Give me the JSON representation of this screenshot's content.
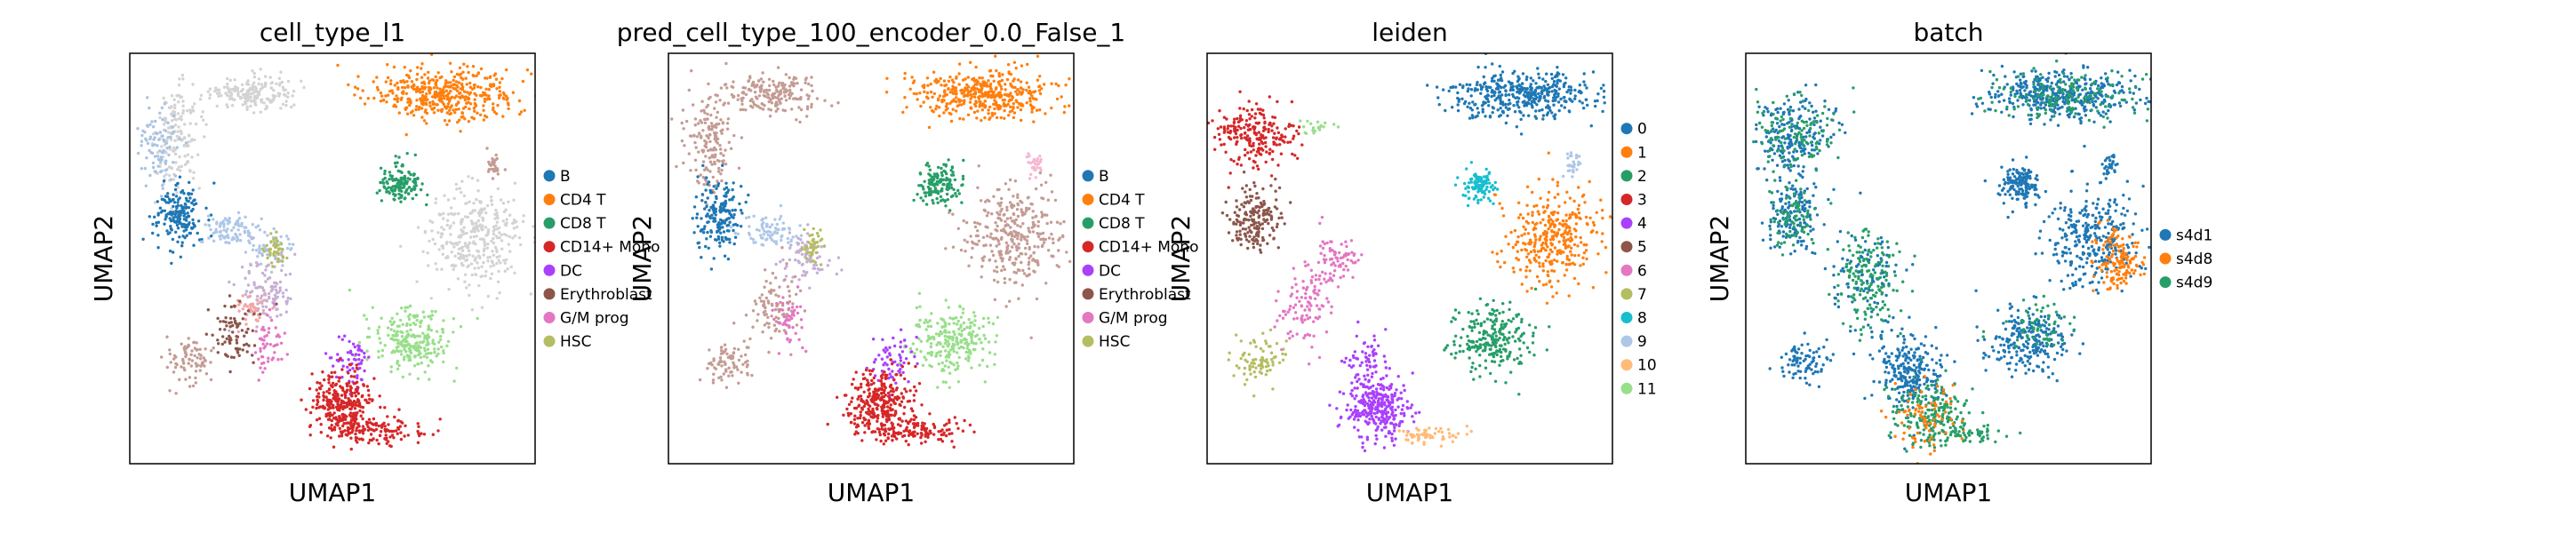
{
  "chart_data": [
    {
      "type": "scatter",
      "title": "cell_type_l1",
      "xlabel": "UMAP1",
      "ylabel": "UMAP2",
      "legend": {
        "position": "right",
        "entries": [
          {
            "label": "B",
            "color": "#1f77b4"
          },
          {
            "label": "CD4 T",
            "color": "#ff7f0e"
          },
          {
            "label": "CD8 T",
            "color": "#279e68"
          },
          {
            "label": "CD14+ Mono",
            "color": "#d62728"
          },
          {
            "label": "DC",
            "color": "#aa40fc"
          },
          {
            "label": "Erythroblast",
            "color": "#8c564b"
          },
          {
            "label": "G/M prog",
            "color": "#e377c2"
          },
          {
            "label": "HSC",
            "color": "#b5bd61"
          }
        ]
      },
      "clusters": [
        {
          "x": 0.3,
          "y": 0.1,
          "sx": 0.05,
          "sy": 0.02,
          "n": 180,
          "color": "#d3d3d3"
        },
        {
          "x": 0.12,
          "y": 0.2,
          "sx": 0.03,
          "sy": 0.06,
          "n": 160,
          "color": "#d3d3d3"
        },
        {
          "x": 0.07,
          "y": 0.22,
          "sx": 0.025,
          "sy": 0.05,
          "n": 90,
          "color": "#a9c3e3"
        },
        {
          "x": 0.12,
          "y": 0.4,
          "sx": 0.03,
          "sy": 0.04,
          "n": 180,
          "color": "#1f77b4"
        },
        {
          "x": 0.25,
          "y": 0.43,
          "sx": 0.04,
          "sy": 0.02,
          "n": 90,
          "color": "#aec7e8"
        },
        {
          "x": 0.35,
          "y": 0.47,
          "sx": 0.03,
          "sy": 0.02,
          "n": 60,
          "color": "#aec7e8"
        },
        {
          "x": 0.34,
          "y": 0.57,
          "sx": 0.03,
          "sy": 0.04,
          "n": 110,
          "color": "#c5b0d5"
        },
        {
          "x": 0.3,
          "y": 0.62,
          "sx": 0.02,
          "sy": 0.02,
          "n": 40,
          "color": "#f4a4a4"
        },
        {
          "x": 0.26,
          "y": 0.68,
          "sx": 0.03,
          "sy": 0.04,
          "n": 80,
          "color": "#8c564b"
        },
        {
          "x": 0.15,
          "y": 0.75,
          "sx": 0.03,
          "sy": 0.03,
          "n": 80,
          "color": "#c49c94"
        },
        {
          "x": 0.34,
          "y": 0.72,
          "sx": 0.02,
          "sy": 0.04,
          "n": 50,
          "color": "#e377c2"
        },
        {
          "x": 0.36,
          "y": 0.48,
          "sx": 0.015,
          "sy": 0.02,
          "n": 40,
          "color": "#b5bd61"
        },
        {
          "x": 0.78,
          "y": 0.1,
          "sx": 0.09,
          "sy": 0.03,
          "n": 420,
          "color": "#ff7f0e"
        },
        {
          "x": 0.9,
          "y": 0.27,
          "sx": 0.01,
          "sy": 0.015,
          "n": 30,
          "color": "#c49c94"
        },
        {
          "x": 0.67,
          "y": 0.32,
          "sx": 0.025,
          "sy": 0.025,
          "n": 140,
          "color": "#279e68"
        },
        {
          "x": 0.85,
          "y": 0.45,
          "sx": 0.06,
          "sy": 0.06,
          "n": 330,
          "color": "#d3d3d3"
        },
        {
          "x": 0.7,
          "y": 0.7,
          "sx": 0.05,
          "sy": 0.04,
          "n": 240,
          "color": "#98df8a"
        },
        {
          "x": 0.55,
          "y": 0.75,
          "sx": 0.025,
          "sy": 0.035,
          "n": 60,
          "color": "#aa40fc"
        },
        {
          "x": 0.52,
          "y": 0.85,
          "sx": 0.04,
          "sy": 0.04,
          "n": 300,
          "color": "#d62728"
        },
        {
          "x": 0.61,
          "y": 0.92,
          "sx": 0.06,
          "sy": 0.015,
          "n": 130,
          "color": "#d62728"
        }
      ]
    },
    {
      "type": "scatter",
      "title": "pred_cell_type_100_encoder_0.0_False_1",
      "xlabel": "UMAP1",
      "ylabel": "UMAP2",
      "legend": {
        "position": "right",
        "entries": [
          {
            "label": "B",
            "color": "#1f77b4"
          },
          {
            "label": "CD4 T",
            "color": "#ff7f0e"
          },
          {
            "label": "CD8 T",
            "color": "#279e68"
          },
          {
            "label": "CD14+ Mono",
            "color": "#d62728"
          },
          {
            "label": "DC",
            "color": "#aa40fc"
          },
          {
            "label": "Erythroblast",
            "color": "#8c564b"
          },
          {
            "label": "G/M prog",
            "color": "#e377c2"
          },
          {
            "label": "HSC",
            "color": "#b5bd61"
          }
        ]
      },
      "clusters": [
        {
          "x": 0.25,
          "y": 0.1,
          "sx": 0.06,
          "sy": 0.025,
          "n": 200,
          "color": "#c49c94"
        },
        {
          "x": 0.1,
          "y": 0.22,
          "sx": 0.03,
          "sy": 0.06,
          "n": 160,
          "color": "#c49c94"
        },
        {
          "x": 0.12,
          "y": 0.4,
          "sx": 0.03,
          "sy": 0.04,
          "n": 180,
          "color": "#1f77b4"
        },
        {
          "x": 0.25,
          "y": 0.43,
          "sx": 0.04,
          "sy": 0.02,
          "n": 80,
          "color": "#aec7e8"
        },
        {
          "x": 0.34,
          "y": 0.5,
          "sx": 0.03,
          "sy": 0.03,
          "n": 80,
          "color": "#c5b0d5"
        },
        {
          "x": 0.35,
          "y": 0.47,
          "sx": 0.015,
          "sy": 0.02,
          "n": 40,
          "color": "#b5bd61"
        },
        {
          "x": 0.26,
          "y": 0.62,
          "sx": 0.03,
          "sy": 0.04,
          "n": 90,
          "color": "#c49c94"
        },
        {
          "x": 0.15,
          "y": 0.75,
          "sx": 0.03,
          "sy": 0.03,
          "n": 80,
          "color": "#c49c94"
        },
        {
          "x": 0.3,
          "y": 0.65,
          "sx": 0.02,
          "sy": 0.03,
          "n": 50,
          "color": "#e377c2"
        },
        {
          "x": 0.78,
          "y": 0.1,
          "sx": 0.09,
          "sy": 0.03,
          "n": 420,
          "color": "#ff7f0e"
        },
        {
          "x": 0.9,
          "y": 0.27,
          "sx": 0.01,
          "sy": 0.015,
          "n": 30,
          "color": "#f7b6d2"
        },
        {
          "x": 0.67,
          "y": 0.32,
          "sx": 0.025,
          "sy": 0.025,
          "n": 140,
          "color": "#279e68"
        },
        {
          "x": 0.85,
          "y": 0.45,
          "sx": 0.06,
          "sy": 0.06,
          "n": 330,
          "color": "#c49c94"
        },
        {
          "x": 0.7,
          "y": 0.7,
          "sx": 0.05,
          "sy": 0.04,
          "n": 240,
          "color": "#98df8a"
        },
        {
          "x": 0.55,
          "y": 0.75,
          "sx": 0.025,
          "sy": 0.035,
          "n": 60,
          "color": "#aa40fc"
        },
        {
          "x": 0.52,
          "y": 0.85,
          "sx": 0.04,
          "sy": 0.04,
          "n": 300,
          "color": "#d62728"
        },
        {
          "x": 0.61,
          "y": 0.92,
          "sx": 0.06,
          "sy": 0.015,
          "n": 130,
          "color": "#d62728"
        }
      ]
    },
    {
      "type": "scatter",
      "title": "leiden",
      "xlabel": "UMAP1",
      "ylabel": "UMAP2",
      "legend": {
        "position": "right",
        "entries": [
          {
            "label": "0",
            "color": "#1f77b4"
          },
          {
            "label": "1",
            "color": "#ff7f0e"
          },
          {
            "label": "2",
            "color": "#279e68"
          },
          {
            "label": "3",
            "color": "#d62728"
          },
          {
            "label": "4",
            "color": "#aa40fc"
          },
          {
            "label": "5",
            "color": "#8c564b"
          },
          {
            "label": "6",
            "color": "#e377c2"
          },
          {
            "label": "7",
            "color": "#b5bd61"
          },
          {
            "label": "8",
            "color": "#17becf"
          },
          {
            "label": "9",
            "color": "#aec7e8"
          },
          {
            "label": "10",
            "color": "#ffbb78"
          },
          {
            "label": "11",
            "color": "#98df8a"
          }
        ]
      },
      "clusters": [
        {
          "x": 0.78,
          "y": 0.1,
          "sx": 0.09,
          "sy": 0.03,
          "n": 420,
          "color": "#1f77b4"
        },
        {
          "x": 0.9,
          "y": 0.27,
          "sx": 0.01,
          "sy": 0.015,
          "n": 30,
          "color": "#aec7e8"
        },
        {
          "x": 0.67,
          "y": 0.32,
          "sx": 0.02,
          "sy": 0.02,
          "n": 100,
          "color": "#17becf"
        },
        {
          "x": 0.85,
          "y": 0.45,
          "sx": 0.06,
          "sy": 0.06,
          "n": 330,
          "color": "#ff7f0e"
        },
        {
          "x": 0.7,
          "y": 0.7,
          "sx": 0.05,
          "sy": 0.04,
          "n": 240,
          "color": "#279e68"
        },
        {
          "x": 0.12,
          "y": 0.2,
          "sx": 0.05,
          "sy": 0.04,
          "n": 220,
          "color": "#d62728"
        },
        {
          "x": 0.27,
          "y": 0.18,
          "sx": 0.02,
          "sy": 0.01,
          "n": 20,
          "color": "#98df8a"
        },
        {
          "x": 0.12,
          "y": 0.4,
          "sx": 0.03,
          "sy": 0.04,
          "n": 180,
          "color": "#8c564b"
        },
        {
          "x": 0.32,
          "y": 0.5,
          "sx": 0.03,
          "sy": 0.03,
          "n": 80,
          "color": "#e377c2"
        },
        {
          "x": 0.24,
          "y": 0.62,
          "sx": 0.03,
          "sy": 0.05,
          "n": 100,
          "color": "#e377c2"
        },
        {
          "x": 0.13,
          "y": 0.75,
          "sx": 0.03,
          "sy": 0.03,
          "n": 80,
          "color": "#b5bd61"
        },
        {
          "x": 0.4,
          "y": 0.75,
          "sx": 0.025,
          "sy": 0.035,
          "n": 60,
          "color": "#aa40fc"
        },
        {
          "x": 0.42,
          "y": 0.86,
          "sx": 0.04,
          "sy": 0.04,
          "n": 300,
          "color": "#aa40fc"
        },
        {
          "x": 0.55,
          "y": 0.93,
          "sx": 0.04,
          "sy": 0.01,
          "n": 60,
          "color": "#ffbb78"
        }
      ]
    },
    {
      "type": "scatter",
      "title": "batch",
      "xlabel": "UMAP1",
      "ylabel": "UMAP2",
      "legend": {
        "position": "right",
        "entries": [
          {
            "label": "s4d1",
            "color": "#1f77b4"
          },
          {
            "label": "s4d8",
            "color": "#ff7f0e"
          },
          {
            "label": "s4d9",
            "color": "#279e68"
          }
        ]
      },
      "clusters": [
        {
          "x": 0.78,
          "y": 0.1,
          "sx": 0.09,
          "sy": 0.03,
          "n": 420,
          "color": "#1f77b4"
        },
        {
          "x": 0.78,
          "y": 0.1,
          "sx": 0.09,
          "sy": 0.03,
          "n": 150,
          "color": "#279e68"
        },
        {
          "x": 0.9,
          "y": 0.27,
          "sx": 0.01,
          "sy": 0.015,
          "n": 30,
          "color": "#1f77b4"
        },
        {
          "x": 0.67,
          "y": 0.32,
          "sx": 0.025,
          "sy": 0.025,
          "n": 140,
          "color": "#1f77b4"
        },
        {
          "x": 0.85,
          "y": 0.45,
          "sx": 0.06,
          "sy": 0.06,
          "n": 300,
          "color": "#1f77b4"
        },
        {
          "x": 0.92,
          "y": 0.5,
          "sx": 0.03,
          "sy": 0.04,
          "n": 140,
          "color": "#ff7f0e"
        },
        {
          "x": 0.7,
          "y": 0.7,
          "sx": 0.05,
          "sy": 0.04,
          "n": 240,
          "color": "#1f77b4"
        },
        {
          "x": 0.73,
          "y": 0.67,
          "sx": 0.04,
          "sy": 0.03,
          "n": 60,
          "color": "#279e68"
        },
        {
          "x": 0.12,
          "y": 0.2,
          "sx": 0.05,
          "sy": 0.05,
          "n": 200,
          "color": "#1f77b4"
        },
        {
          "x": 0.12,
          "y": 0.2,
          "sx": 0.05,
          "sy": 0.05,
          "n": 120,
          "color": "#279e68"
        },
        {
          "x": 0.12,
          "y": 0.4,
          "sx": 0.03,
          "sy": 0.04,
          "n": 140,
          "color": "#1f77b4"
        },
        {
          "x": 0.12,
          "y": 0.4,
          "sx": 0.03,
          "sy": 0.04,
          "n": 80,
          "color": "#279e68"
        },
        {
          "x": 0.3,
          "y": 0.55,
          "sx": 0.04,
          "sy": 0.06,
          "n": 180,
          "color": "#279e68"
        },
        {
          "x": 0.3,
          "y": 0.55,
          "sx": 0.04,
          "sy": 0.06,
          "n": 80,
          "color": "#1f77b4"
        },
        {
          "x": 0.15,
          "y": 0.75,
          "sx": 0.03,
          "sy": 0.03,
          "n": 80,
          "color": "#1f77b4"
        },
        {
          "x": 0.4,
          "y": 0.78,
          "sx": 0.04,
          "sy": 0.05,
          "n": 250,
          "color": "#1f77b4"
        },
        {
          "x": 0.45,
          "y": 0.88,
          "sx": 0.05,
          "sy": 0.04,
          "n": 200,
          "color": "#279e68"
        },
        {
          "x": 0.45,
          "y": 0.88,
          "sx": 0.05,
          "sy": 0.04,
          "n": 80,
          "color": "#ff7f0e"
        },
        {
          "x": 0.55,
          "y": 0.93,
          "sx": 0.04,
          "sy": 0.01,
          "n": 50,
          "color": "#279e68"
        }
      ]
    }
  ]
}
